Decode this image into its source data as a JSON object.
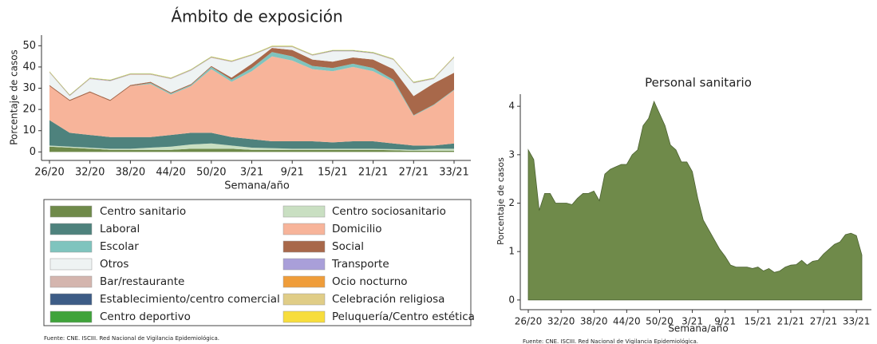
{
  "chart_data": [
    {
      "type": "area",
      "stacked": true,
      "title": "Ámbito de exposición",
      "xlabel": "Semana/año",
      "ylabel": "Porcentaje de casos",
      "source": "Fuente: CNE. ISCIII. Red Nacional de Vigilancia Epidemiológica.",
      "categories": [
        "26/20",
        null,
        "32/20",
        null,
        "38/20",
        null,
        "44/20",
        null,
        "50/20",
        null,
        "3/21",
        null,
        "9/21",
        null,
        "15/21",
        null,
        "21/21",
        null,
        "27/21",
        null,
        "33/21"
      ],
      "ylim": [
        -4,
        55
      ],
      "yticks": [
        0,
        10,
        20,
        30,
        40,
        50
      ],
      "series": [
        {
          "name": "Centro sanitario",
          "color": "#6f8a4a",
          "values": [
            2.5,
            2,
            1.5,
            1,
            1,
            1,
            1,
            1.5,
            1.5,
            1.5,
            1,
            1,
            1,
            1,
            1,
            1,
            1,
            0.8,
            0.5,
            0.5,
            0.5
          ]
        },
        {
          "name": "Centro sociosanitario",
          "color": "#c9dfc2",
          "values": [
            0.5,
            0.5,
            0.5,
            0.5,
            0.5,
            1,
            1.5,
            2,
            2.5,
            1.5,
            1,
            0.8,
            0.5,
            0.5,
            0.5,
            0.5,
            0.5,
            0.5,
            0.5,
            1,
            1
          ]
        },
        {
          "name": "Laboral",
          "color": "#4e827d",
          "values": [
            12,
            6.5,
            6,
            5.5,
            5.5,
            5,
            5.5,
            5.5,
            5,
            4,
            4,
            3.2,
            3.5,
            3.5,
            3,
            3.5,
            3.5,
            2.7,
            2,
            1.5,
            2.5
          ]
        },
        {
          "name": "Domicilio",
          "color": "#f7b49a",
          "values": [
            16,
            15,
            20,
            17,
            24,
            25,
            19,
            22,
            30,
            26,
            32,
            40,
            38,
            34,
            33.5,
            35,
            33,
            29,
            14,
            19,
            25
          ]
        },
        {
          "name": "Escolar",
          "color": "#7fc4be",
          "values": [
            0,
            0,
            0,
            0,
            0,
            0.5,
            0.5,
            0.5,
            1,
            1,
            1.5,
            2,
            2,
            1.5,
            1.5,
            1.5,
            1.5,
            1,
            0.3,
            0.3,
            0.3
          ]
        },
        {
          "name": "Social",
          "color": "#a8684a",
          "values": [
            0.5,
            0.5,
            0.5,
            0.5,
            0.5,
            0.5,
            0.5,
            0.5,
            0.5,
            1,
            2,
            2,
            3,
            3,
            3,
            3,
            4,
            5,
            9,
            10,
            8
          ]
        },
        {
          "name": "Otros",
          "color": "#eef3f3",
          "values": [
            5.8,
            1.8,
            5.8,
            8.8,
            4.8,
            3.3,
            6.3,
            6.3,
            3.8,
            7.3,
            3.8,
            0.3,
            1.3,
            1.8,
            4.8,
            2.8,
            2.8,
            4.3,
            6,
            2,
            7
          ]
        },
        {
          "name": "Transporte",
          "color": "#a99fd9",
          "values": [
            0.1,
            0.1,
            0.1,
            0.1,
            0.1,
            0.1,
            0.1,
            0.1,
            0.1,
            0.1,
            0.1,
            0.1,
            0.1,
            0.1,
            0.1,
            0.1,
            0.1,
            0.1,
            0.1,
            0.1,
            0.1
          ]
        },
        {
          "name": "Bar/restaurante",
          "color": "#d4b5ae",
          "values": [
            0.1,
            0.1,
            0.1,
            0.1,
            0.1,
            0.1,
            0.1,
            0.1,
            0.1,
            0.1,
            0.1,
            0.1,
            0.1,
            0.1,
            0.1,
            0.1,
            0.1,
            0.1,
            0.1,
            0.1,
            0.1
          ]
        },
        {
          "name": "Ocio nocturno",
          "color": "#ef9d3a",
          "values": [
            0.1,
            0.1,
            0.1,
            0.1,
            0.1,
            0.1,
            0.1,
            0.1,
            0.1,
            0.1,
            0.1,
            0.1,
            0.1,
            0.1,
            0.1,
            0.1,
            0.1,
            0.1,
            0.1,
            0.1,
            0.1
          ]
        },
        {
          "name": "Establecimiento/centro comercial",
          "color": "#3d5c86",
          "values": [
            0.1,
            0.1,
            0.1,
            0.1,
            0.1,
            0.1,
            0.1,
            0.1,
            0.1,
            0.1,
            0.1,
            0.1,
            0.1,
            0.1,
            0.1,
            0.1,
            0.1,
            0.1,
            0.1,
            0.1,
            0.1
          ]
        },
        {
          "name": "Celebración religiosa",
          "color": "#e0cd87",
          "values": [
            0.1,
            0.1,
            0.1,
            0.1,
            0.1,
            0.1,
            0.1,
            0.1,
            0.1,
            0.1,
            0.1,
            0.1,
            0.1,
            0.1,
            0.1,
            0.1,
            0.1,
            0.1,
            0.1,
            0.1,
            0.1
          ]
        },
        {
          "name": "Centro deportivo",
          "color": "#3fa33a",
          "values": [
            0.1,
            0.1,
            0.1,
            0.1,
            0.1,
            0.1,
            0.1,
            0.1,
            0.1,
            0.1,
            0.1,
            0.1,
            0.1,
            0.1,
            0.1,
            0.1,
            0.1,
            0.1,
            0.1,
            0.1,
            0.1
          ]
        },
        {
          "name": "Peluquería/Centro estética",
          "color": "#f7dd3c",
          "values": [
            0.1,
            0.1,
            0.1,
            0.1,
            0.1,
            0.1,
            0.1,
            0.1,
            0.1,
            0.1,
            0.1,
            0.1,
            0.1,
            0.1,
            0.1,
            0.1,
            0.1,
            0.1,
            0.1,
            0.1,
            0.1
          ]
        }
      ]
    },
    {
      "type": "area",
      "title": "Personal sanitario",
      "xlabel": "Semana/año",
      "ylabel": "Porcentaje de casos",
      "source": "Fuente: CNE. ISCIII. Red Nacional de Vigilancia Epidemiológica.",
      "categories": [
        "26/20",
        null,
        null,
        null,
        null,
        null,
        "32/20",
        null,
        null,
        null,
        null,
        null,
        "38/20",
        null,
        null,
        null,
        null,
        null,
        "44/20",
        null,
        null,
        null,
        null,
        null,
        "50/20",
        null,
        null,
        null,
        null,
        null,
        "3/21",
        null,
        null,
        null,
        null,
        null,
        "9/21",
        null,
        null,
        null,
        null,
        null,
        "15/21",
        null,
        null,
        null,
        null,
        null,
        "21/21",
        null,
        null,
        null,
        null,
        null,
        "27/21",
        null,
        null,
        null,
        null,
        null,
        "33/21",
        null
      ],
      "ylim": [
        -0.2,
        4.25
      ],
      "yticks": [
        0,
        1,
        2,
        3,
        4
      ],
      "color": "#6f8a4a",
      "values": [
        3.1,
        2.9,
        1.85,
        2.2,
        2.2,
        2.0,
        2.0,
        2.0,
        1.97,
        2.1,
        2.2,
        2.2,
        2.25,
        2.05,
        2.6,
        2.7,
        2.75,
        2.8,
        2.8,
        3.0,
        3.1,
        3.6,
        3.75,
        4.1,
        3.85,
        3.6,
        3.2,
        3.1,
        2.85,
        2.85,
        2.65,
        2.1,
        1.65,
        1.45,
        1.25,
        1.05,
        0.9,
        0.72,
        0.68,
        0.68,
        0.68,
        0.65,
        0.68,
        0.6,
        0.65,
        0.57,
        0.6,
        0.68,
        0.72,
        0.73,
        0.82,
        0.72,
        0.8,
        0.82,
        0.95,
        1.05,
        1.15,
        1.2,
        1.35,
        1.38,
        1.33,
        0.93
      ]
    }
  ]
}
